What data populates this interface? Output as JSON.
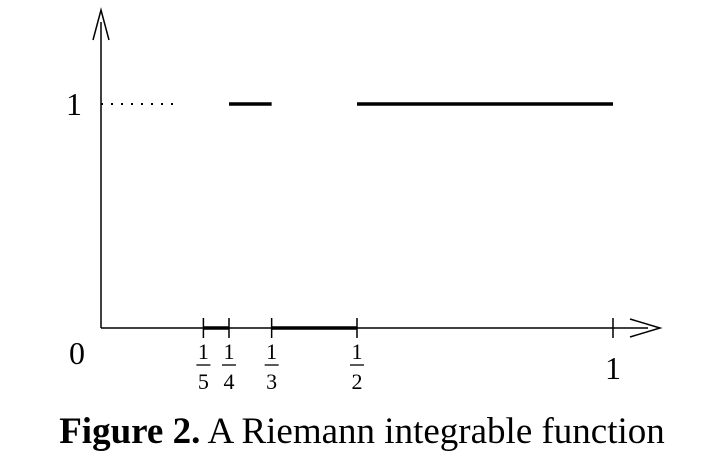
{
  "chart_data": {
    "type": "line",
    "y_tick_labels": [
      {
        "value": 1,
        "text": "1"
      }
    ],
    "origin_label": "0",
    "x_ticks": [
      {
        "value": 0.2,
        "num": "1",
        "den": "5"
      },
      {
        "value": 0.25,
        "num": "1",
        "den": "4"
      },
      {
        "value": 0.3333,
        "num": "1",
        "den": "3"
      },
      {
        "value": 0.5,
        "num": "1",
        "den": "2"
      },
      {
        "value": 1,
        "text": "1"
      }
    ],
    "segments": [
      {
        "x": [
          0,
          0.15
        ],
        "y": 1,
        "style": "dotted"
      },
      {
        "x": [
          0.2,
          0.25
        ],
        "y": 0,
        "style": "solid"
      },
      {
        "x": [
          0.25,
          0.3333
        ],
        "y": 1,
        "style": "solid"
      },
      {
        "x": [
          0.3333,
          0.5
        ],
        "y": 0,
        "style": "solid"
      },
      {
        "x": [
          0.5,
          1
        ],
        "y": 1,
        "style": "solid"
      }
    ],
    "xlim": [
      0,
      1.08
    ],
    "ylim": [
      0,
      1.4
    ],
    "grid": false,
    "legend": "none"
  },
  "caption": {
    "label": "Figure 2.",
    "text": "A Riemann integrable function"
  }
}
